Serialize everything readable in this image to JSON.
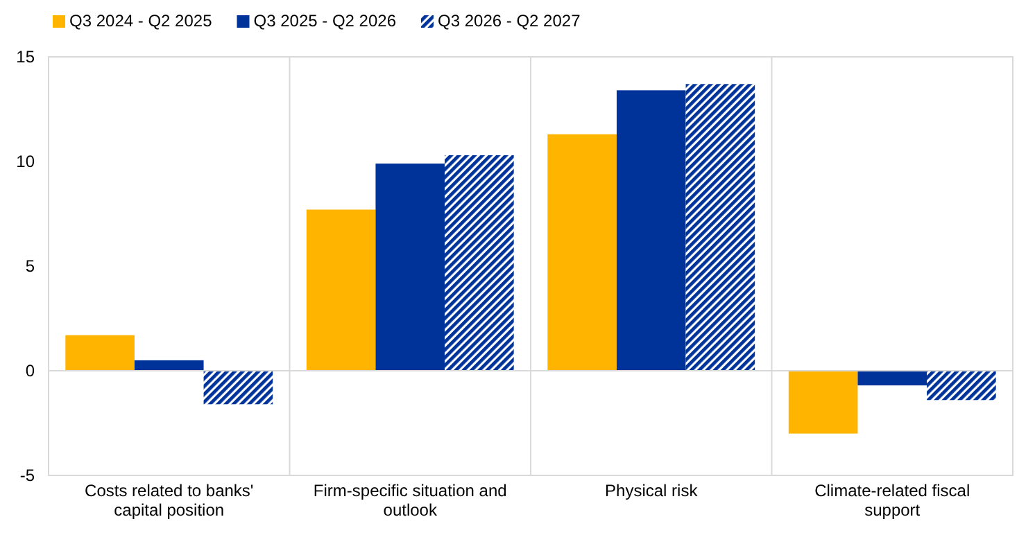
{
  "chart_data": {
    "type": "bar",
    "categories": [
      "Costs related to banks' capital position",
      "Firm-specific situation and outlook",
      "Physical risk",
      "Climate-related fiscal support"
    ],
    "series": [
      {
        "name": "Q3 2024 - Q2 2025",
        "color": "#ffb400",
        "values": [
          1.7,
          7.7,
          11.3,
          -3.0
        ]
      },
      {
        "name": "Q3 2025 - Q2 2026",
        "color": "#003399",
        "values": [
          0.5,
          9.9,
          13.4,
          -0.7
        ]
      },
      {
        "name": "Q3 2026 - Q2 2027",
        "color": "#003399",
        "values": [
          -1.6,
          10.3,
          13.7,
          -1.4
        ]
      }
    ],
    "ylim": [
      -5,
      15
    ],
    "yticks": [
      -5,
      0,
      5,
      10,
      15
    ],
    "legend": "top left"
  }
}
